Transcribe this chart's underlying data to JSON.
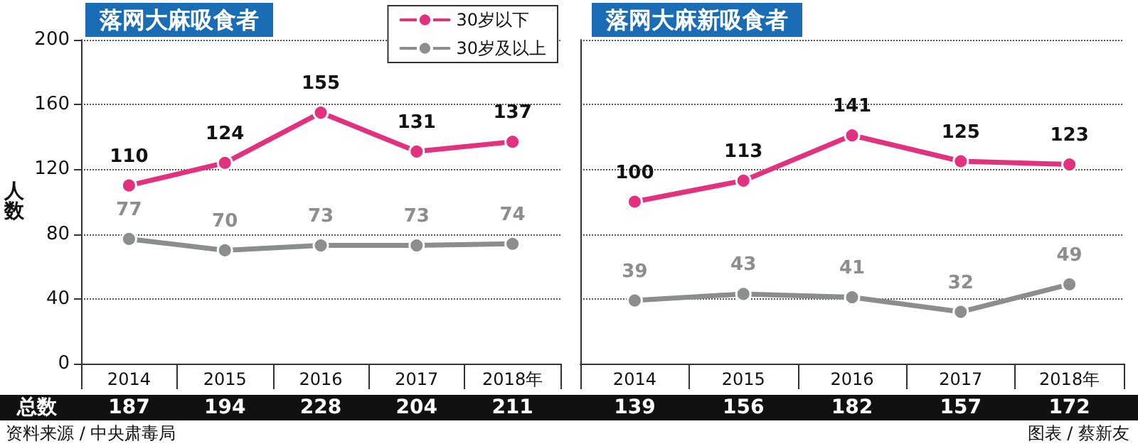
{
  "chart_data": [
    {
      "type": "line",
      "title": "落网大麻吸食者",
      "ylabel": "人数",
      "categories": [
        "2014",
        "2015",
        "2016",
        "2017",
        "2018年"
      ],
      "series": [
        {
          "name": "30岁以下",
          "color": "#e2317e",
          "values": [
            110,
            124,
            155,
            131,
            137
          ]
        },
        {
          "name": "30岁及以上",
          "color": "#8c8e8d",
          "values": [
            77,
            70,
            73,
            73,
            74
          ]
        }
      ],
      "ylim": [
        0,
        200
      ],
      "yticks": [
        0,
        40,
        80,
        120,
        160,
        200
      ],
      "grid": "y",
      "legend": "top right",
      "marker": "circle",
      "line_style": "solid",
      "data_labels": true,
      "totals": [
        "187",
        "194",
        "228",
        "204",
        "211"
      ],
      "annotations": [
        "总数",
        "资料来源 / 中央肃毒局"
      ]
    },
    {
      "type": "line",
      "title": "落网大麻新吸食者",
      "categories": [
        "2014",
        "2015",
        "2016",
        "2017",
        "2018年"
      ],
      "series": [
        {
          "color": "#e2317e",
          "values": [
            100,
            113,
            141,
            125,
            123
          ]
        },
        {
          "color": "#8c8e8d",
          "values": [
            39,
            43,
            41,
            32,
            49
          ]
        }
      ],
      "ylim": [
        0,
        200
      ],
      "yticks": [
        0,
        40,
        80,
        120,
        160,
        200
      ],
      "grid": "y",
      "tick_labels": "x",
      "marker": "circle",
      "line_style": "solid",
      "data_labels": true,
      "totals": [
        "139",
        "156",
        "182",
        "157",
        "172"
      ],
      "annotations": [
        "图表 / 蔡新友"
      ]
    }
  ]
}
